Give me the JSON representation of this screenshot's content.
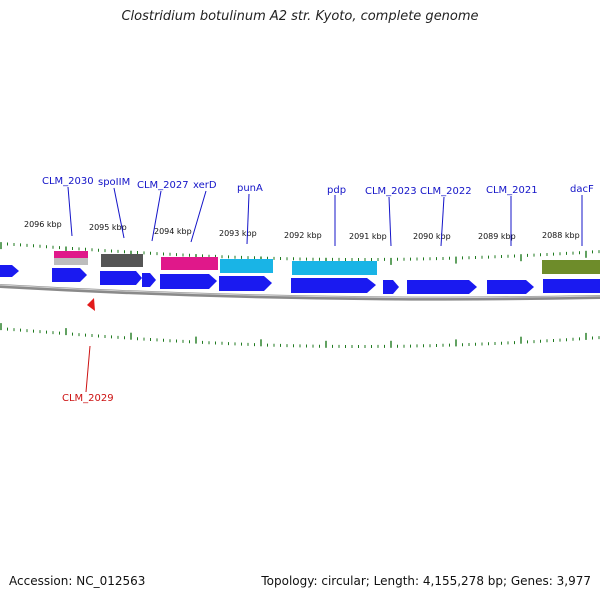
{
  "title": "Clostridium botulinum A2 str. Kyoto, complete genome",
  "footer": {
    "accession": "Accession: NC_012563",
    "summary": "Topology: circular; Length: 4,155,278 bp; Genes: 3,977"
  },
  "kbp_labels": [
    "2096 kbp",
    "2095 kbp",
    "2094 kbp",
    "2093 kbp",
    "2092 kbp",
    "2091 kbp",
    "2090 kbp",
    "2089 kbp",
    "2088 kbp"
  ],
  "genes_forward": [
    "CLM_2030",
    "spoIIM",
    "CLM_2027",
    "xerD",
    "punA",
    "pdp",
    "CLM_2023",
    "CLM_2022",
    "CLM_2021",
    "dacF"
  ],
  "genes_reverse": [
    "CLM_2029"
  ],
  "colors": {
    "cds": "#1a1af0",
    "magenta": "#e0188a",
    "cyan": "#19b4e6",
    "gray": "#555555",
    "olive": "#6e8c2a",
    "tick": "#1f7a1f",
    "backbone": "#808080",
    "label_blue": "#1414c8",
    "label_red": "#cc1111"
  }
}
